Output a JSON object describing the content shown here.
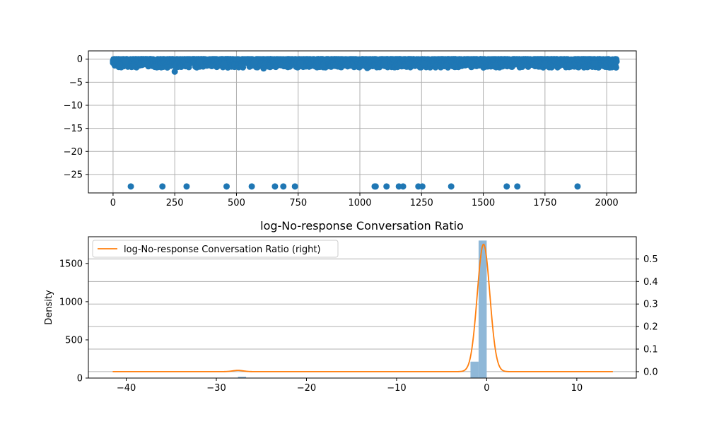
{
  "chart_data": [
    {
      "type": "scatter",
      "title": "",
      "xlabel": "",
      "ylabel": "",
      "xlim": [
        -100,
        2120
      ],
      "ylim": [
        -29,
        1.8
      ],
      "grid": true,
      "xticks": [
        0,
        250,
        500,
        750,
        1000,
        1250,
        1500,
        1750,
        2000
      ],
      "yticks": [
        0,
        -5,
        -10,
        -15,
        -20,
        -25
      ],
      "xtick_labels": [
        "0",
        "250",
        "500",
        "750",
        "1000",
        "1250",
        "1500",
        "1750",
        "2000"
      ],
      "ytick_labels": [
        "0",
        "−5",
        "−10",
        "−15",
        "−20",
        "−25"
      ],
      "color": "#1f77b4",
      "dense_band": {
        "x_range": [
          0,
          2040
        ],
        "y_range": [
          -1.8,
          0
        ],
        "approx_points": 2040
      },
      "points": [
        {
          "x": 0,
          "y": -0.8
        },
        {
          "x": 10,
          "y": -0.3
        },
        {
          "x": 25,
          "y": -1.2
        },
        {
          "x": 50,
          "y": -0.4
        },
        {
          "x": 80,
          "y": -1.5
        },
        {
          "x": 130,
          "y": -0.9
        },
        {
          "x": 170,
          "y": -1.6
        },
        {
          "x": 220,
          "y": -1.8
        },
        {
          "x": 250,
          "y": -2.7
        },
        {
          "x": 300,
          "y": -1.4
        },
        {
          "x": 350,
          "y": -0.6
        },
        {
          "x": 400,
          "y": -1.5
        },
        {
          "x": 450,
          "y": -1.1
        },
        {
          "x": 520,
          "y": -1.6
        },
        {
          "x": 570,
          "y": -0.7
        },
        {
          "x": 610,
          "y": -2.0
        },
        {
          "x": 680,
          "y": -1.3
        },
        {
          "x": 760,
          "y": -0.9
        },
        {
          "x": 850,
          "y": -1.7
        },
        {
          "x": 950,
          "y": -1.2
        },
        {
          "x": 1030,
          "y": -1.9
        },
        {
          "x": 1100,
          "y": -0.8
        },
        {
          "x": 1180,
          "y": -1.5
        },
        {
          "x": 1260,
          "y": -1.1
        },
        {
          "x": 1350,
          "y": -1.4
        },
        {
          "x": 1450,
          "y": -0.9
        },
        {
          "x": 1550,
          "y": -1.3
        },
        {
          "x": 1650,
          "y": -1.6
        },
        {
          "x": 1750,
          "y": -1.1
        },
        {
          "x": 1850,
          "y": -1.4
        },
        {
          "x": 1950,
          "y": -1.0
        },
        {
          "x": 2040,
          "y": -0.5
        },
        {
          "x": 72,
          "y": -27.6
        },
        {
          "x": 200,
          "y": -27.6
        },
        {
          "x": 298,
          "y": -27.6
        },
        {
          "x": 460,
          "y": -27.6
        },
        {
          "x": 562,
          "y": -27.6
        },
        {
          "x": 656,
          "y": -27.6
        },
        {
          "x": 690,
          "y": -27.6
        },
        {
          "x": 737,
          "y": -27.6
        },
        {
          "x": 1060,
          "y": -27.6
        },
        {
          "x": 1064,
          "y": -27.6
        },
        {
          "x": 1108,
          "y": -27.6
        },
        {
          "x": 1158,
          "y": -27.6
        },
        {
          "x": 1175,
          "y": -27.6
        },
        {
          "x": 1237,
          "y": -27.6
        },
        {
          "x": 1253,
          "y": -27.6
        },
        {
          "x": 1370,
          "y": -27.6
        },
        {
          "x": 1595,
          "y": -27.6
        },
        {
          "x": 1638,
          "y": -27.6
        },
        {
          "x": 1882,
          "y": -27.6
        }
      ]
    },
    {
      "type": "histogram+kde",
      "title": "log-No-response Conversation Ratio",
      "xlabel": "",
      "ylabel": "Density",
      "xlim": [
        -44.2,
        16.6
      ],
      "ylim_left": [
        0,
        1850
      ],
      "ylim_right": [
        -0.0285,
        0.5985
      ],
      "grid": true,
      "xticks": [
        -40,
        -30,
        -20,
        -10,
        0,
        10
      ],
      "xtick_labels": [
        "−40",
        "−30",
        "−20",
        "−10",
        "0",
        "10"
      ],
      "yticks_left": [
        0,
        500,
        1000,
        1500
      ],
      "ytick_labels_left": [
        "0",
        "500",
        "1000",
        "1500"
      ],
      "yticks_right": [
        0.0,
        0.1,
        0.2,
        0.3,
        0.4,
        0.5
      ],
      "ytick_labels_right": [
        "0.0",
        "0.1",
        "0.2",
        "0.3",
        "0.4",
        "0.5"
      ],
      "histogram": {
        "color": "#8fb8d8",
        "bins": [
          {
            "x0": -27.6,
            "x1": -26.7,
            "count": 18
          },
          {
            "x0": -1.8,
            "x1": -0.9,
            "count": 215
          },
          {
            "x0": -0.9,
            "x1": 0.0,
            "count": 1800
          }
        ]
      },
      "kde": {
        "name": "log-No-response Conversation Ratio (right)",
        "color": "#ff7f0e",
        "x_range": [
          -41.5,
          14
        ],
        "components": [
          {
            "weight": 0.0083,
            "mean": -27.6,
            "sd": 0.6
          },
          {
            "weight": 0.9917,
            "mean": -0.35,
            "sd": 0.7
          }
        ]
      },
      "legend": {
        "placement": "upper left"
      }
    }
  ]
}
